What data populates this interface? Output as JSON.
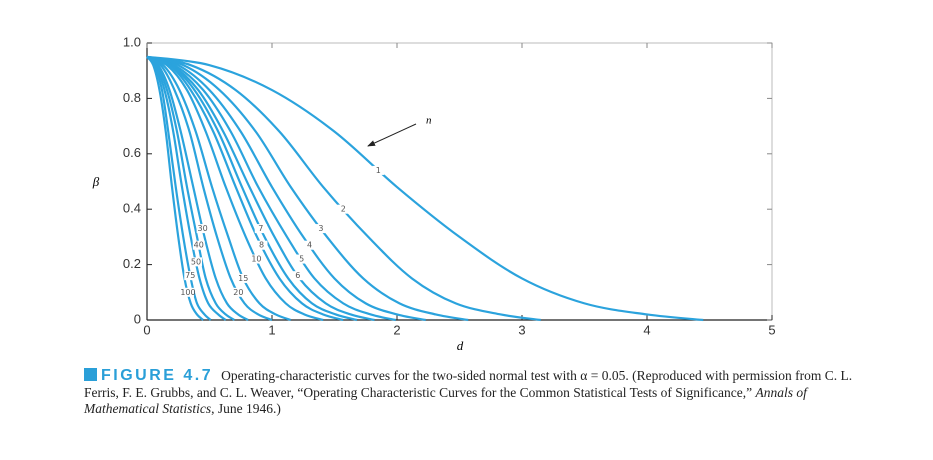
{
  "chart_data": {
    "type": "line",
    "xlabel": "d",
    "ylabel": "β",
    "annotation": "n",
    "xlim": [
      0,
      5
    ],
    "ylim": [
      0,
      1
    ],
    "xticks": [
      0,
      1,
      2,
      3,
      4,
      5
    ],
    "yticks": [
      0,
      0.2,
      0.4,
      0.6,
      0.8,
      {
        "value": 1,
        "label": "1.0"
      }
    ],
    "color": "#2ba3dd",
    "series": [
      {
        "name": "1",
        "x": [
          0,
          0.5,
          1,
          1.5,
          2,
          2.5,
          3,
          3.5,
          4,
          4.45
        ],
        "values": [
          0.95,
          0.92,
          0.83,
          0.68,
          0.48,
          0.3,
          0.15,
          0.06,
          0.02,
          0
        ]
      },
      {
        "name": "2",
        "x": [
          0,
          0.35,
          0.71,
          1.06,
          1.41,
          1.77,
          2.12,
          2.47,
          2.83,
          3.15
        ],
        "values": [
          0.95,
          0.92,
          0.83,
          0.68,
          0.48,
          0.3,
          0.15,
          0.06,
          0.02,
          0
        ]
      },
      {
        "name": "3",
        "x": [
          0,
          0.29,
          0.58,
          0.87,
          1.15,
          1.44,
          1.73,
          2.02,
          2.31,
          2.57
        ],
        "values": [
          0.95,
          0.92,
          0.83,
          0.68,
          0.48,
          0.3,
          0.15,
          0.06,
          0.02,
          0
        ]
      },
      {
        "name": "4",
        "x": [
          0,
          0.25,
          0.5,
          0.75,
          1,
          1.25,
          1.5,
          1.75,
          2,
          2.23
        ],
        "values": [
          0.95,
          0.92,
          0.83,
          0.68,
          0.48,
          0.3,
          0.15,
          0.06,
          0.02,
          0
        ]
      },
      {
        "name": "5",
        "x": [
          0,
          0.22,
          0.45,
          0.67,
          0.89,
          1.12,
          1.34,
          1.57,
          1.79,
          1.99
        ],
        "values": [
          0.95,
          0.92,
          0.83,
          0.68,
          0.48,
          0.3,
          0.15,
          0.06,
          0.02,
          0
        ]
      },
      {
        "name": "6",
        "x": [
          0,
          0.2,
          0.41,
          0.61,
          0.82,
          1.02,
          1.22,
          1.43,
          1.63,
          1.82
        ],
        "values": [
          0.95,
          0.92,
          0.83,
          0.68,
          0.48,
          0.3,
          0.15,
          0.06,
          0.02,
          0
        ]
      },
      {
        "name": "7",
        "x": [
          0,
          0.19,
          0.38,
          0.57,
          0.76,
          0.94,
          1.13,
          1.32,
          1.51,
          1.68
        ],
        "values": [
          0.95,
          0.92,
          0.83,
          0.68,
          0.48,
          0.3,
          0.15,
          0.06,
          0.02,
          0
        ]
      },
      {
        "name": "8",
        "x": [
          0,
          0.18,
          0.35,
          0.53,
          0.71,
          0.88,
          1.06,
          1.24,
          1.41,
          1.57
        ],
        "values": [
          0.95,
          0.92,
          0.83,
          0.68,
          0.48,
          0.3,
          0.15,
          0.06,
          0.02,
          0
        ]
      },
      {
        "name": "10",
        "x": [
          0,
          0.16,
          0.32,
          0.47,
          0.63,
          0.79,
          0.95,
          1.11,
          1.26,
          1.41
        ],
        "values": [
          0.95,
          0.92,
          0.83,
          0.68,
          0.48,
          0.3,
          0.15,
          0.06,
          0.02,
          0
        ]
      },
      {
        "name": "15",
        "x": [
          0,
          0.13,
          0.26,
          0.39,
          0.52,
          0.65,
          0.77,
          0.9,
          1.03,
          1.15
        ],
        "values": [
          0.95,
          0.92,
          0.83,
          0.68,
          0.48,
          0.3,
          0.15,
          0.06,
          0.02,
          0
        ]
      },
      {
        "name": "20",
        "x": [
          0,
          0.11,
          0.22,
          0.34,
          0.45,
          0.56,
          0.67,
          0.78,
          0.89,
          1.0
        ],
        "values": [
          0.95,
          0.92,
          0.83,
          0.68,
          0.48,
          0.3,
          0.15,
          0.06,
          0.02,
          0
        ]
      },
      {
        "name": "30",
        "x": [
          0,
          0.09,
          0.18,
          0.27,
          0.37,
          0.46,
          0.55,
          0.64,
          0.73,
          0.81
        ],
        "values": [
          0.95,
          0.92,
          0.83,
          0.68,
          0.48,
          0.3,
          0.15,
          0.06,
          0.02,
          0
        ]
      },
      {
        "name": "40",
        "x": [
          0,
          0.08,
          0.16,
          0.24,
          0.32,
          0.4,
          0.47,
          0.55,
          0.63,
          0.7
        ],
        "values": [
          0.95,
          0.92,
          0.83,
          0.68,
          0.48,
          0.3,
          0.15,
          0.06,
          0.02,
          0
        ]
      },
      {
        "name": "50",
        "x": [
          0,
          0.07,
          0.14,
          0.21,
          0.28,
          0.35,
          0.42,
          0.49,
          0.57,
          0.63
        ],
        "values": [
          0.95,
          0.92,
          0.83,
          0.68,
          0.48,
          0.3,
          0.15,
          0.06,
          0.02,
          0
        ]
      },
      {
        "name": "75",
        "x": [
          0,
          0.06,
          0.12,
          0.17,
          0.23,
          0.29,
          0.35,
          0.4,
          0.46,
          0.51
        ],
        "values": [
          0.95,
          0.92,
          0.83,
          0.68,
          0.48,
          0.3,
          0.15,
          0.06,
          0.02,
          0
        ]
      },
      {
        "name": "100",
        "x": [
          0,
          0.05,
          0.1,
          0.15,
          0.2,
          0.25,
          0.3,
          0.35,
          0.4,
          0.45
        ],
        "values": [
          0.95,
          0.92,
          0.83,
          0.68,
          0.48,
          0.3,
          0.15,
          0.06,
          0.02,
          0
        ]
      }
    ]
  },
  "caption": {
    "label": "FIGURE 4.7",
    "text": "Operating-characteristic curves for the two-sided normal test with α = 0.05. (Reproduced with permission from C. L. Ferris, F. E. Grubbs, and C. L. Weaver, “Operating Characteristic Curves for the Common Statistical Tests of Significance,”",
    "journal": "Annals of Mathematical Statistics",
    "date": ", June 1946.)"
  }
}
